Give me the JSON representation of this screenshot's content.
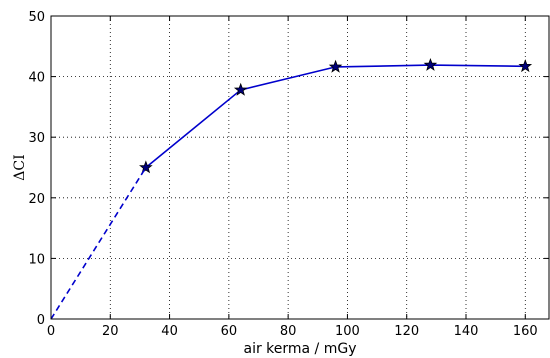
{
  "chart_data": {
    "type": "line",
    "xlabel": "air kerma / mGy",
    "ylabel": "ΔCI",
    "xlim": [
      0,
      168
    ],
    "ylim": [
      0,
      50
    ],
    "xticks": [
      0,
      20,
      40,
      60,
      80,
      100,
      120,
      140,
      160
    ],
    "yticks": [
      0,
      10,
      20,
      30,
      40,
      50
    ],
    "grid": true,
    "series": [
      {
        "style": "solid",
        "marker": "star",
        "color": "#0000cc",
        "x": [
          32,
          64,
          96,
          128,
          160
        ],
        "y": [
          25.0,
          37.8,
          41.6,
          41.9,
          41.7
        ]
      },
      {
        "style": "dashed",
        "marker": "none",
        "color": "#0000cc",
        "x": [
          0,
          32
        ],
        "y": [
          0,
          25.0
        ]
      }
    ]
  }
}
